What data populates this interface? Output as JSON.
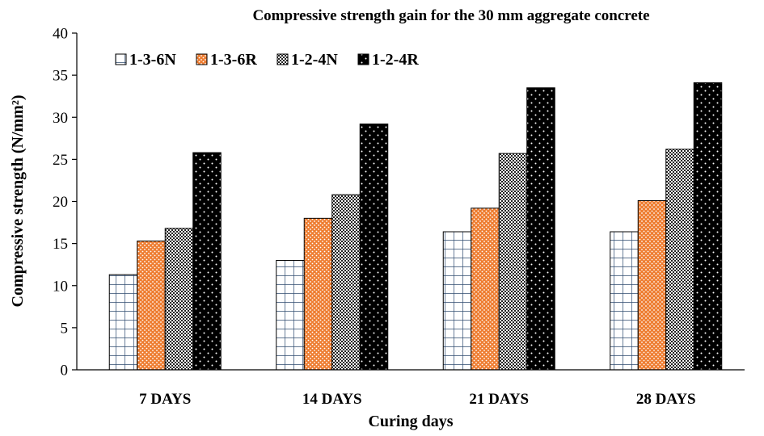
{
  "chart_data": {
    "type": "bar",
    "title": "Compressive strength gain for the 30 mm aggregate concrete",
    "xlabel": "Curing days",
    "ylabel": "Compressive strength (N/mm²)",
    "categories": [
      "7 DAYS",
      "14 DAYS",
      "21 DAYS",
      "28 DAYS"
    ],
    "ylim": [
      0,
      40
    ],
    "yticks": [
      "0",
      "5",
      "10",
      "15",
      "20",
      "25",
      "30",
      "35",
      "40"
    ],
    "grid": false,
    "legend_position": "top-left",
    "series": [
      {
        "name": "1-3-6N",
        "values": [
          11.3,
          13.0,
          16.4,
          16.4
        ],
        "pattern": "grid-blue"
      },
      {
        "name": "1-3-6R",
        "values": [
          15.3,
          18.0,
          19.2,
          20.1
        ],
        "pattern": "orange-dots"
      },
      {
        "name": "1-2-4N",
        "values": [
          16.8,
          20.8,
          25.7,
          26.2
        ],
        "pattern": "checker"
      },
      {
        "name": "1-2-4R",
        "values": [
          25.8,
          29.2,
          33.5,
          34.1
        ],
        "pattern": "black-dots"
      }
    ]
  }
}
